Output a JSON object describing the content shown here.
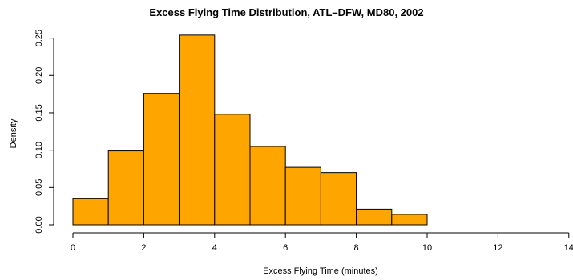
{
  "chart_data": {
    "type": "bar",
    "title": "Excess Flying Time Distribution, ATL–DFW, MD80, 2002",
    "xlabel": "Excess Flying Time (minutes)",
    "ylabel": "Density",
    "bins": [
      [
        0,
        1
      ],
      [
        1,
        2
      ],
      [
        2,
        3
      ],
      [
        3,
        4
      ],
      [
        4,
        5
      ],
      [
        5,
        6
      ],
      [
        6,
        7
      ],
      [
        7,
        8
      ],
      [
        8,
        9
      ],
      [
        9,
        10
      ]
    ],
    "values": [
      0.035,
      0.099,
      0.176,
      0.254,
      0.148,
      0.105,
      0.077,
      0.07,
      0.021,
      0.014
    ],
    "xlim": [
      0,
      14
    ],
    "ylim": [
      0,
      0.25
    ],
    "x_ticks": [
      0,
      2,
      4,
      6,
      8,
      10,
      12,
      14
    ],
    "x_tick_labels": [
      "0",
      "2",
      "4",
      "6",
      "8",
      "10",
      "12",
      "14"
    ],
    "y_ticks": [
      0.0,
      0.05,
      0.1,
      0.15,
      0.2,
      0.25
    ],
    "y_tick_labels": [
      "0.00",
      "0.05",
      "0.10",
      "0.15",
      "0.20",
      "0.25"
    ],
    "grid": false,
    "bar_color": "#FFA500",
    "edge_color": "#000000"
  }
}
